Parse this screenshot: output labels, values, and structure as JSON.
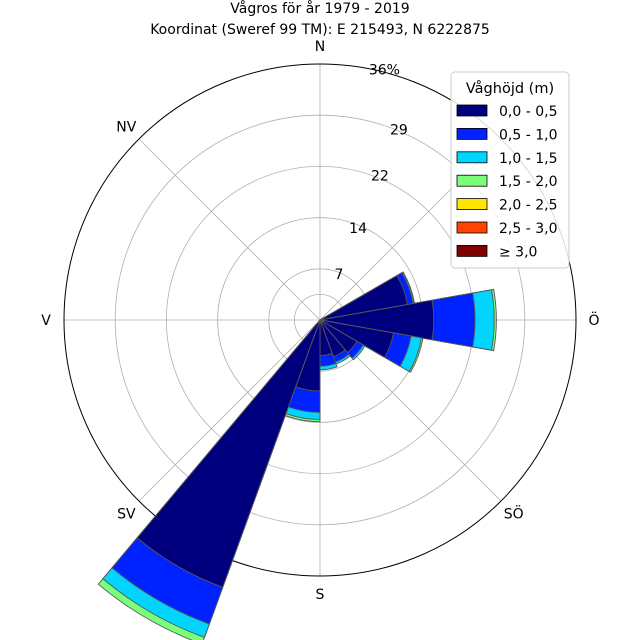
{
  "chart_data": {
    "type": "windrose",
    "title": "Vågros för år 1979 - 2019",
    "subtitle": "Koordinat (Sweref 99 TM): E 215493, N 6222875",
    "directions": [
      {
        "label": "N",
        "angle_deg": 0
      },
      {
        "label": "NV",
        "angle_deg": 315
      },
      {
        "label": "V",
        "angle_deg": 270
      },
      {
        "label": "SV",
        "angle_deg": 225
      },
      {
        "label": "S",
        "angle_deg": 180
      },
      {
        "label": "SÖ",
        "angle_deg": 135
      },
      {
        "label": "Ö",
        "angle_deg": 90
      }
    ],
    "radial_ticks": [
      7,
      14,
      22,
      29
    ],
    "radial_max": 36,
    "radial_max_label": "36%",
    "grid": true,
    "legend": {
      "title": "Våghöjd (m)",
      "position": "top-right",
      "entries": [
        {
          "label": "0,0 - 0,5",
          "color": "#00007f"
        },
        {
          "label": "0,5 - 1,0",
          "color": "#0022ff"
        },
        {
          "label": "1,0 - 1,5",
          "color": "#00d4ff"
        },
        {
          "label": "1,5 - 2,0",
          "color": "#7bff7b"
        },
        {
          "label": "2,0 - 2,5",
          "color": "#ffe500"
        },
        {
          "label": "2,5 - 3,0",
          "color": "#ff4400"
        },
        {
          "label": "≥ 3,0",
          "color": "#7f0000"
        }
      ]
    },
    "sector_width_deg": 20,
    "sectors": [
      {
        "center_deg": 70,
        "cumulative": [
          12.5,
          13.3,
          13.45,
          13.5
        ]
      },
      {
        "center_deg": 90,
        "cumulative": [
          16.0,
          21.8,
          24.5,
          24.8
        ]
      },
      {
        "center_deg": 110,
        "cumulative": [
          10.5,
          13.0,
          14.5,
          14.7
        ]
      },
      {
        "center_deg": 130,
        "cumulative": [
          6.0,
          7.0,
          7.3
        ]
      },
      {
        "center_deg": 150,
        "cumulative": [
          5.5,
          6.3,
          6.6
        ]
      },
      {
        "center_deg": 170,
        "cumulative": [
          5.0,
          6.5,
          7.0
        ]
      },
      {
        "center_deg": 190,
        "cumulative": [
          10.0,
          13.0,
          14.0,
          14.3
        ]
      },
      {
        "center_deg": 210,
        "cumulative": [
          40.0,
          45.5,
          47.5,
          48.5
        ]
      }
    ]
  }
}
